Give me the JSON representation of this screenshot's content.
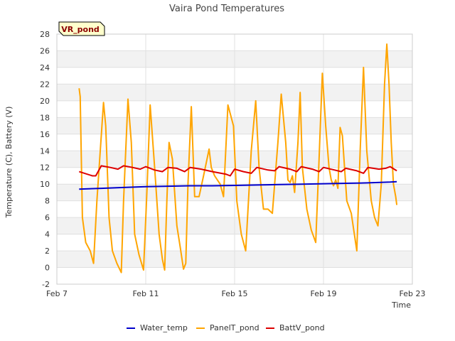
{
  "chart_data": {
    "type": "line",
    "title": "Vaira Pond Temperatures",
    "xlabel": "Time",
    "ylabel": "Temperature (C), Battery (V)",
    "badge": "VR_pond",
    "x_ticks": [
      "Feb 7",
      "Feb 11",
      "Feb 15",
      "Feb 19",
      "Feb 23"
    ],
    "xlim": [
      7,
      23
    ],
    "ylim": [
      -2,
      28
    ],
    "y_ticks": [
      -2,
      0,
      2,
      4,
      6,
      8,
      10,
      12,
      14,
      16,
      18,
      20,
      22,
      24,
      26,
      28
    ],
    "grid": true,
    "legend_position": "bottom",
    "series": [
      {
        "name": "Water_temp",
        "color": "#0000cc",
        "x": [
          8.0,
          9.0,
          10.0,
          11.0,
          12.0,
          13.0,
          14.0,
          15.0,
          16.0,
          17.0,
          18.0,
          19.0,
          20.0,
          21.0,
          22.0,
          22.3
        ],
        "y": [
          9.4,
          9.5,
          9.6,
          9.7,
          9.75,
          9.8,
          9.8,
          9.85,
          9.9,
          9.95,
          10.0,
          10.05,
          10.1,
          10.15,
          10.25,
          10.3
        ]
      },
      {
        "name": "PanelT_pond",
        "color": "#ffa500",
        "x": [
          8.0,
          8.05,
          8.15,
          8.3,
          8.5,
          8.65,
          8.8,
          9.1,
          9.2,
          9.35,
          9.5,
          9.7,
          9.9,
          10.0,
          10.2,
          10.35,
          10.5,
          10.7,
          10.9,
          11.05,
          11.2,
          11.4,
          11.6,
          11.75,
          11.85,
          11.95,
          12.05,
          12.2,
          12.4,
          12.55,
          12.7,
          12.8,
          12.9,
          13.05,
          13.2,
          13.4,
          13.6,
          13.85,
          13.95,
          14.1,
          14.35,
          14.5,
          14.7,
          14.95,
          15.1,
          15.3,
          15.5,
          15.75,
          15.95,
          16.1,
          16.3,
          16.5,
          16.7,
          16.95,
          17.1,
          17.3,
          17.4,
          17.5,
          17.6,
          17.7,
          17.85,
          17.95,
          18.05,
          18.25,
          18.45,
          18.65,
          18.8,
          18.95,
          19.1,
          19.25,
          19.35,
          19.45,
          19.55,
          19.65,
          19.75,
          19.85,
          20.05,
          20.25,
          20.5,
          20.65,
          20.8,
          20.95,
          21.15,
          21.3,
          21.45,
          21.6,
          21.75,
          21.85,
          21.95,
          22.05,
          22.15,
          22.25,
          22.3
        ],
        "y": [
          21.5,
          20.5,
          6.0,
          3.0,
          2.0,
          0.5,
          8.0,
          19.8,
          17.0,
          6.0,
          2.0,
          0.5,
          -0.6,
          8.0,
          20.2,
          15.0,
          4.0,
          1.5,
          -0.3,
          9.0,
          19.5,
          12.0,
          4.0,
          1.0,
          -0.3,
          8.0,
          15.0,
          13.0,
          5.0,
          2.5,
          -0.2,
          0.5,
          10.0,
          19.3,
          8.5,
          8.5,
          11.0,
          14.2,
          12.0,
          11.0,
          10.0,
          8.5,
          19.5,
          17.0,
          8.0,
          4.0,
          2.0,
          14.0,
          20.0,
          12.0,
          7.0,
          7.0,
          6.5,
          15.0,
          20.8,
          15.0,
          10.5,
          10.2,
          11.0,
          9.0,
          15.0,
          21.0,
          12.0,
          7.0,
          4.5,
          3.0,
          13.0,
          23.3,
          17.0,
          12.0,
          10.5,
          9.8,
          10.5,
          9.5,
          16.8,
          15.8,
          8.0,
          6.5,
          2.0,
          14.0,
          24.0,
          14.0,
          8.0,
          6.0,
          5.0,
          10.0,
          22.0,
          26.8,
          22.0,
          15.0,
          10.0,
          8.5,
          7.5
        ]
      },
      {
        "name": "BattV_pond",
        "color": "#dd0000",
        "x": [
          8.0,
          8.6,
          8.75,
          9.0,
          9.4,
          9.75,
          10.0,
          10.4,
          10.75,
          11.0,
          11.4,
          11.75,
          12.0,
          12.4,
          12.75,
          13.0,
          13.5,
          14.0,
          14.6,
          14.8,
          15.0,
          15.4,
          15.75,
          16.0,
          16.5,
          16.8,
          17.0,
          17.5,
          17.8,
          18.0,
          18.5,
          18.8,
          19.0,
          19.5,
          19.8,
          20.0,
          20.5,
          20.8,
          21.0,
          21.5,
          21.8,
          22.0,
          22.3
        ],
        "y": [
          11.5,
          11.0,
          11.0,
          12.2,
          12.0,
          11.8,
          12.2,
          12.0,
          11.8,
          12.1,
          11.7,
          11.5,
          12.0,
          11.9,
          11.5,
          12.0,
          11.8,
          11.5,
          11.2,
          11.0,
          11.8,
          11.5,
          11.3,
          12.0,
          11.7,
          11.6,
          12.1,
          11.8,
          11.5,
          12.1,
          11.8,
          11.5,
          12.0,
          11.7,
          11.5,
          11.9,
          11.6,
          11.3,
          12.0,
          11.8,
          11.9,
          12.1,
          11.6
        ]
      }
    ]
  }
}
